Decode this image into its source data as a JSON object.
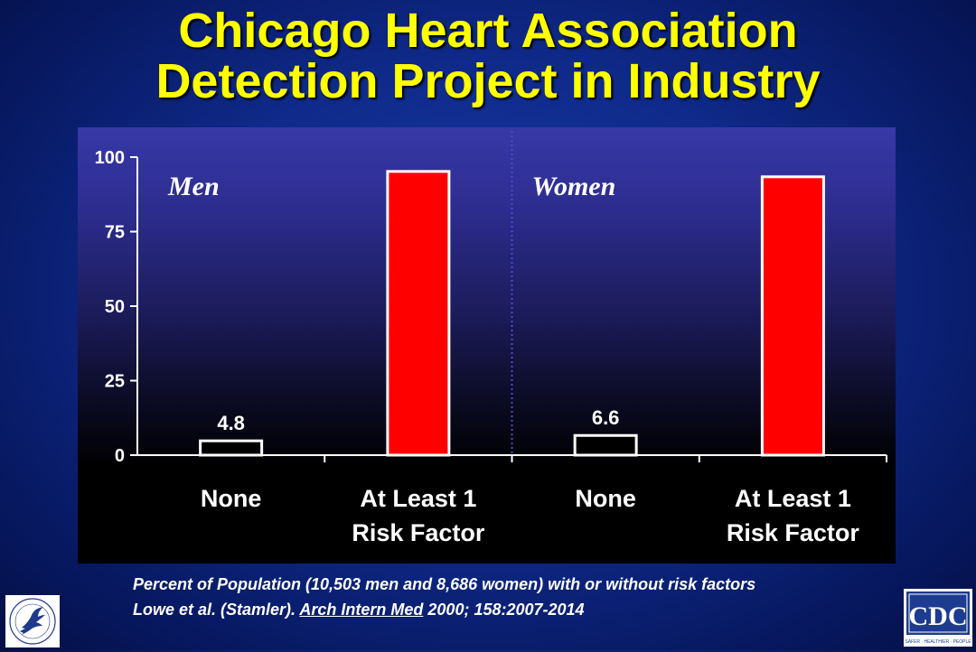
{
  "title": {
    "line1": "Chicago Heart Association",
    "line2": "Detection Project in Industry"
  },
  "chart_data": {
    "type": "bar",
    "panels": [
      {
        "label": "Men",
        "categories": [
          "None",
          "At Least  1\nRisk Factor"
        ],
        "values": [
          4.8,
          95.2
        ],
        "data_labels": [
          "4.8",
          ""
        ]
      },
      {
        "label": "Women",
        "categories": [
          "None",
          "At Least 1\nRisk Factor"
        ],
        "values": [
          6.6,
          93.4
        ],
        "data_labels": [
          "6.6",
          ""
        ]
      }
    ],
    "ylim": [
      0,
      100
    ],
    "yticks": [
      0,
      25,
      50,
      75,
      100
    ],
    "colors": {
      "none_bar": "#000000",
      "risk_bar": "#ff0000",
      "bar_edge": "#ffffff"
    }
  },
  "footnote": {
    "line1": "Percent of Population (10,503 men and 8,686 women) with or without risk factors",
    "line2_pre": "Lowe et al. (Stamler). ",
    "line2_journal": "Arch Intern Med",
    "line2_post": " 2000; 158:2007-2014"
  },
  "logos": {
    "left": "hhs-eagle-logo",
    "right": "CDC",
    "right_tagline": "SAFER · HEALTHIER · PEOPLE"
  }
}
